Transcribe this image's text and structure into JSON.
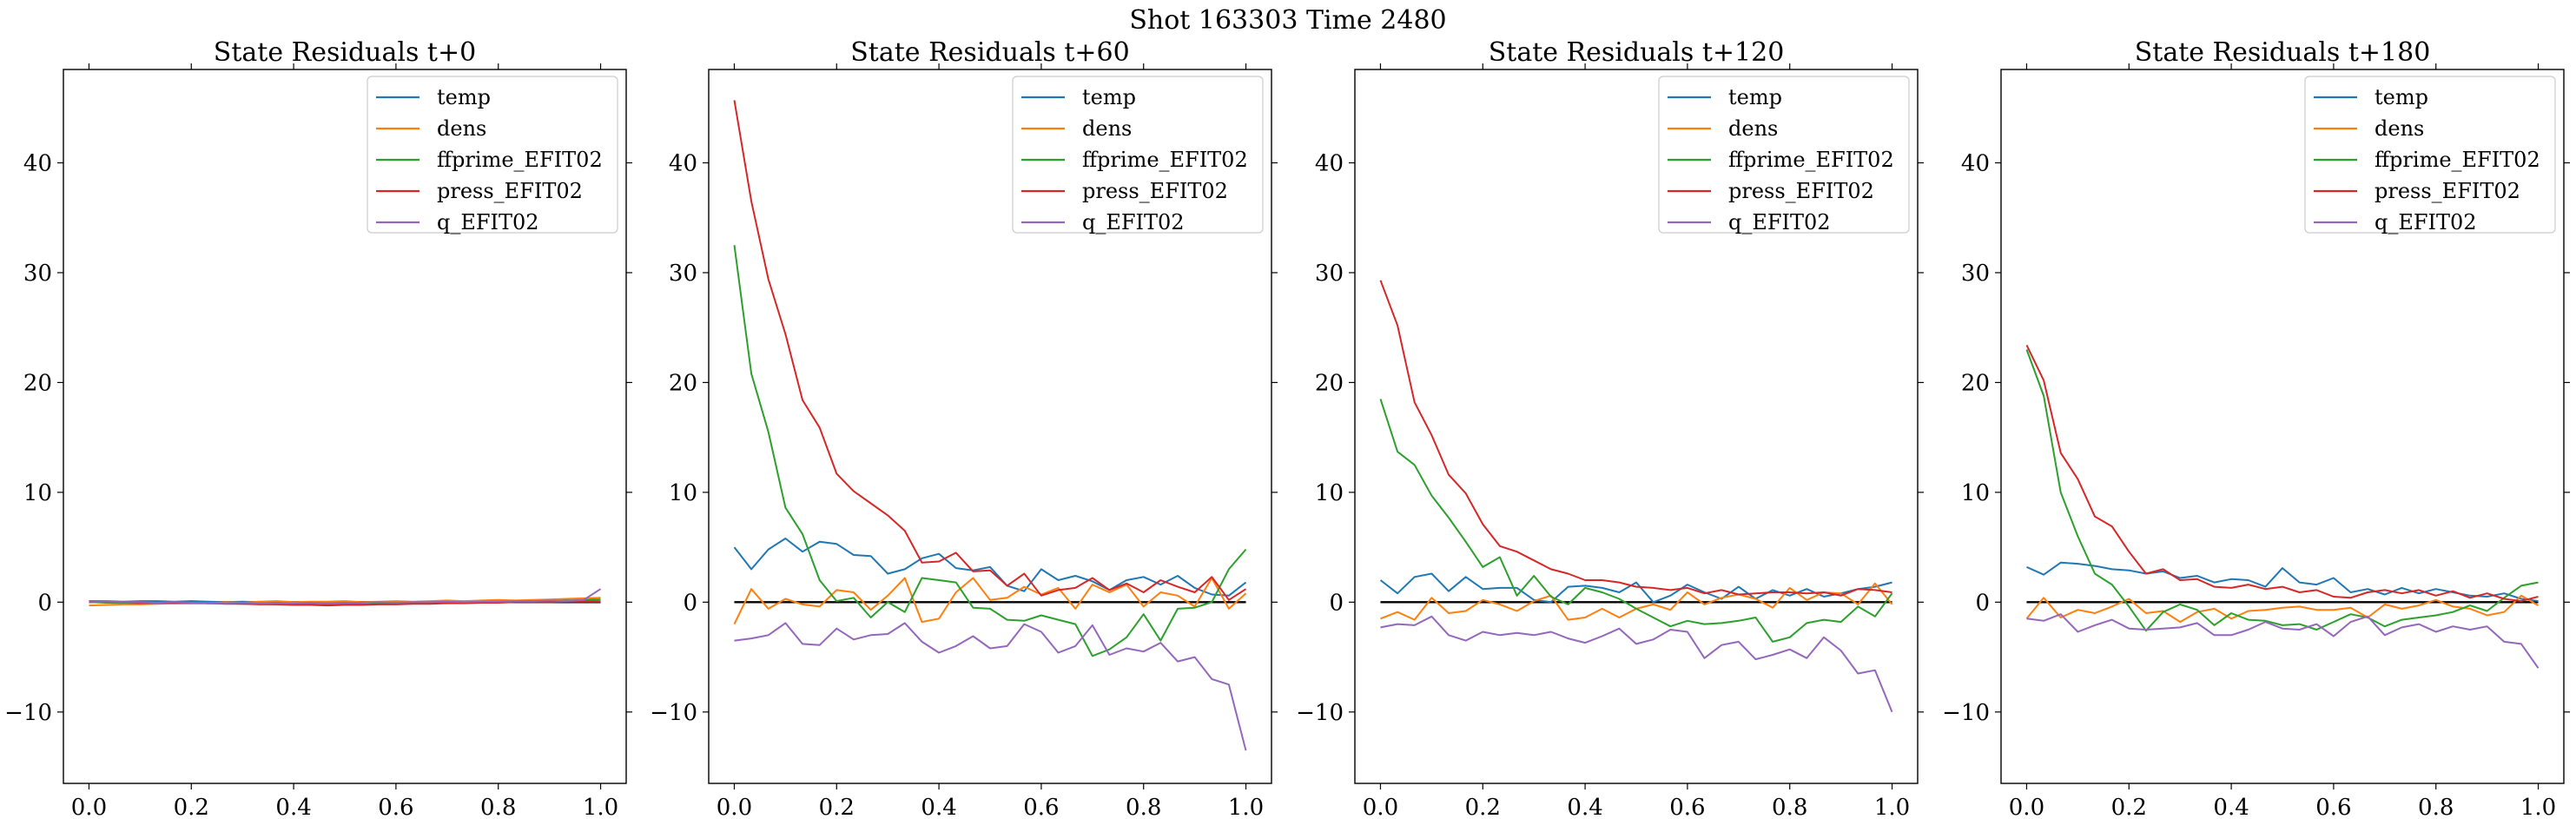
{
  "figure": {
    "suptitle": "Shot 163303   Time 2480"
  },
  "chart_data": [
    {
      "type": "line",
      "title": "State Residuals t+0",
      "xlabel": "",
      "ylabel": "",
      "xlim": [
        -0.05,
        1.05
      ],
      "ylim": [
        -16.5,
        48.5
      ],
      "xticks": [
        "0.0",
        "0.2",
        "0.4",
        "0.6",
        "0.8",
        "1.0"
      ],
      "yticks": [
        "−10",
        "0",
        "10",
        "20",
        "30",
        "40"
      ],
      "legend_position": "top-right",
      "reference_line": 0,
      "x": [
        0.0,
        0.0333,
        0.0667,
        0.1,
        0.1333,
        0.1667,
        0.2,
        0.2333,
        0.2667,
        0.3,
        0.3333,
        0.3667,
        0.4,
        0.4333,
        0.4667,
        0.5,
        0.5333,
        0.5667,
        0.6,
        0.6333,
        0.6667,
        0.7,
        0.7333,
        0.7667,
        0.8,
        0.8333,
        0.8667,
        0.9,
        0.9333,
        0.9667,
        1.0
      ],
      "series": [
        {
          "name": "temp",
          "color": "#1f77b4",
          "values": [
            0.1,
            0.1,
            0.05,
            0.1,
            0.1,
            0.05,
            0.1,
            0.05,
            0.0,
            0.05,
            0.0,
            -0.05,
            0.0,
            -0.05,
            -0.05,
            0.0,
            0.0,
            -0.05,
            0.0,
            0.0,
            0.05,
            0.0,
            0.05,
            0.05,
            0.1,
            0.05,
            0.1,
            0.1,
            0.15,
            0.2,
            0.25
          ]
        },
        {
          "name": "dens",
          "color": "#ff7f0e",
          "values": [
            -0.3,
            -0.25,
            -0.2,
            -0.2,
            -0.15,
            -0.1,
            -0.05,
            -0.1,
            0.0,
            -0.05,
            0.05,
            0.1,
            0.0,
            0.05,
            0.05,
            0.1,
            0.0,
            0.05,
            0.1,
            0.05,
            0.1,
            0.15,
            0.1,
            0.15,
            0.2,
            0.15,
            0.2,
            0.25,
            0.3,
            0.35,
            0.4
          ]
        },
        {
          "name": "ffprime_EFIT02",
          "color": "#2ca02c",
          "values": [
            0.0,
            -0.05,
            -0.05,
            -0.1,
            -0.1,
            -0.05,
            -0.05,
            -0.1,
            -0.1,
            -0.15,
            -0.15,
            -0.2,
            -0.2,
            -0.2,
            -0.25,
            -0.2,
            -0.2,
            -0.15,
            -0.15,
            -0.1,
            -0.1,
            -0.05,
            -0.05,
            0.0,
            0.0,
            0.05,
            0.05,
            0.1,
            0.1,
            0.15,
            0.2
          ]
        },
        {
          "name": "press_EFIT02",
          "color": "#d62728",
          "values": [
            0.05,
            0.0,
            0.0,
            -0.05,
            -0.05,
            -0.1,
            -0.1,
            -0.1,
            -0.15,
            -0.15,
            -0.2,
            -0.2,
            -0.25,
            -0.25,
            -0.3,
            -0.25,
            -0.25,
            -0.2,
            -0.2,
            -0.15,
            -0.15,
            -0.1,
            -0.1,
            -0.05,
            -0.05,
            0.0,
            0.0,
            0.0,
            0.05,
            0.05,
            0.05
          ]
        },
        {
          "name": "q_EFIT02",
          "color": "#9467bd",
          "values": [
            0.0,
            0.05,
            0.0,
            0.0,
            -0.05,
            0.0,
            -0.05,
            -0.05,
            -0.1,
            -0.05,
            -0.1,
            -0.1,
            -0.1,
            -0.05,
            -0.1,
            -0.05,
            -0.05,
            0.0,
            -0.05,
            0.0,
            0.0,
            0.05,
            0.0,
            0.05,
            0.05,
            0.1,
            0.1,
            0.15,
            0.1,
            0.2,
            1.2
          ]
        }
      ]
    },
    {
      "type": "line",
      "title": "State Residuals t+60",
      "xlabel": "",
      "ylabel": "",
      "xlim": [
        -0.05,
        1.05
      ],
      "ylim": [
        -16.5,
        48.5
      ],
      "xticks": [
        "0.0",
        "0.2",
        "0.4",
        "0.6",
        "0.8",
        "1.0"
      ],
      "yticks": [
        "−10",
        "0",
        "10",
        "20",
        "30",
        "40"
      ],
      "legend_position": "top-right",
      "reference_line": 0,
      "x": [
        0.0,
        0.0333,
        0.0667,
        0.1,
        0.1333,
        0.1667,
        0.2,
        0.2333,
        0.2667,
        0.3,
        0.3333,
        0.3667,
        0.4,
        0.4333,
        0.4667,
        0.5,
        0.5333,
        0.5667,
        0.6,
        0.6333,
        0.6667,
        0.7,
        0.7333,
        0.7667,
        0.8,
        0.8333,
        0.8667,
        0.9,
        0.9333,
        0.9667,
        1.0
      ],
      "series": [
        {
          "name": "temp",
          "color": "#1f77b4",
          "values": [
            5.0,
            3.0,
            4.8,
            5.8,
            4.6,
            5.5,
            5.3,
            4.3,
            4.2,
            2.6,
            3.0,
            4.0,
            4.4,
            3.1,
            2.9,
            3.2,
            1.5,
            1.0,
            3.0,
            2.0,
            2.4,
            1.9,
            1.1,
            2.0,
            2.3,
            1.6,
            2.4,
            1.3,
            0.7,
            0.6,
            1.8
          ]
        },
        {
          "name": "dens",
          "color": "#ff7f0e",
          "values": [
            -2.0,
            1.2,
            -0.6,
            0.3,
            -0.2,
            -0.4,
            1.1,
            0.9,
            -0.7,
            0.6,
            2.2,
            -1.8,
            -1.5,
            0.9,
            2.2,
            0.2,
            0.4,
            1.4,
            0.7,
            1.3,
            -0.6,
            1.6,
            0.9,
            1.6,
            -0.4,
            0.9,
            0.6,
            -0.4,
            2.2,
            -0.6,
            0.8
          ]
        },
        {
          "name": "ffprime_EFIT02",
          "color": "#2ca02c",
          "values": [
            32.5,
            20.8,
            15.5,
            8.6,
            6.2,
            2.0,
            0.1,
            0.4,
            -1.4,
            0.0,
            -0.9,
            2.2,
            2.0,
            1.8,
            -0.5,
            -0.6,
            -1.6,
            -1.7,
            -1.2,
            -1.6,
            -2.0,
            -4.9,
            -4.3,
            -3.2,
            -1.1,
            -3.5,
            -0.6,
            -0.5,
            0.0,
            3.0,
            4.8
          ]
        },
        {
          "name": "press_EFIT02",
          "color": "#d62728",
          "values": [
            45.7,
            36.5,
            29.4,
            24.4,
            18.4,
            15.9,
            11.7,
            10.1,
            9.0,
            7.9,
            6.5,
            3.6,
            3.7,
            4.5,
            2.8,
            2.9,
            1.5,
            2.6,
            0.6,
            1.1,
            1.3,
            2.2,
            1.1,
            1.7,
            0.9,
            2.0,
            1.4,
            0.9,
            2.3,
            0.2,
            1.2
          ]
        },
        {
          "name": "q_EFIT02",
          "color": "#9467bd",
          "values": [
            -3.5,
            -3.3,
            -3.0,
            -1.9,
            -3.8,
            -3.9,
            -2.4,
            -3.4,
            -3.0,
            -2.9,
            -1.9,
            -3.6,
            -4.6,
            -4.0,
            -3.1,
            -4.2,
            -4.0,
            -2.0,
            -2.7,
            -4.6,
            -4.0,
            -2.1,
            -4.8,
            -4.2,
            -4.5,
            -3.7,
            -5.4,
            -5.0,
            -7.0,
            -7.5,
            -13.5
          ]
        }
      ]
    },
    {
      "type": "line",
      "title": "State Residuals t+120",
      "xlabel": "",
      "ylabel": "",
      "xlim": [
        -0.05,
        1.05
      ],
      "ylim": [
        -16.5,
        48.5
      ],
      "xticks": [
        "0.0",
        "0.2",
        "0.4",
        "0.6",
        "0.8",
        "1.0"
      ],
      "yticks": [
        "−10",
        "0",
        "10",
        "20",
        "30",
        "40"
      ],
      "legend_position": "top-right",
      "reference_line": 0,
      "x": [
        0.0,
        0.0333,
        0.0667,
        0.1,
        0.1333,
        0.1667,
        0.2,
        0.2333,
        0.2667,
        0.3,
        0.3333,
        0.3667,
        0.4,
        0.4333,
        0.4667,
        0.5,
        0.5333,
        0.5667,
        0.6,
        0.6333,
        0.6667,
        0.7,
        0.7333,
        0.7667,
        0.8,
        0.8333,
        0.8667,
        0.9,
        0.9333,
        0.9667,
        1.0
      ],
      "series": [
        {
          "name": "temp",
          "color": "#1f77b4",
          "values": [
            2.0,
            0.8,
            2.3,
            2.6,
            1.0,
            2.3,
            1.2,
            1.3,
            1.3,
            0.2,
            0.0,
            1.4,
            1.5,
            1.3,
            0.9,
            1.8,
            0.0,
            0.6,
            1.6,
            0.9,
            0.3,
            1.4,
            0.3,
            1.1,
            0.6,
            1.2,
            0.5,
            0.8,
            1.2,
            1.4,
            1.8
          ]
        },
        {
          "name": "dens",
          "color": "#ff7f0e",
          "values": [
            -1.5,
            -0.9,
            -1.6,
            0.4,
            -1.0,
            -0.8,
            0.2,
            -0.2,
            -0.8,
            0.1,
            0.6,
            -1.6,
            -1.4,
            -0.6,
            -1.4,
            -0.6,
            -0.2,
            -0.7,
            0.9,
            -0.2,
            0.4,
            0.7,
            0.3,
            -0.5,
            1.3,
            0.2,
            0.9,
            0.8,
            -0.2,
            1.7,
            -0.2
          ]
        },
        {
          "name": "ffprime_EFIT02",
          "color": "#2ca02c",
          "values": [
            18.5,
            13.7,
            12.5,
            9.7,
            7.7,
            5.5,
            3.2,
            4.1,
            0.6,
            2.4,
            0.5,
            -0.2,
            1.3,
            0.9,
            0.3,
            -0.6,
            -1.4,
            -2.2,
            -1.7,
            -2.0,
            -1.9,
            -1.7,
            -1.4,
            -3.6,
            -3.2,
            -1.9,
            -1.6,
            -1.8,
            -0.4,
            -1.3,
            0.8
          ]
        },
        {
          "name": "press_EFIT02",
          "color": "#d62728",
          "values": [
            29.3,
            25.2,
            18.2,
            15.2,
            11.6,
            9.9,
            7.1,
            5.1,
            4.6,
            3.8,
            3.0,
            2.6,
            2.0,
            2.0,
            1.8,
            1.4,
            1.3,
            1.1,
            1.3,
            0.8,
            1.1,
            0.7,
            0.8,
            0.9,
            0.9,
            0.8,
            0.9,
            0.6,
            1.2,
            1.1,
            0.9
          ]
        },
        {
          "name": "q_EFIT02",
          "color": "#9467bd",
          "values": [
            -2.3,
            -2.0,
            -2.1,
            -1.3,
            -3.0,
            -3.5,
            -2.7,
            -3.0,
            -2.8,
            -3.0,
            -2.7,
            -3.3,
            -3.7,
            -3.1,
            -2.4,
            -3.8,
            -3.4,
            -2.5,
            -2.7,
            -5.1,
            -3.9,
            -3.6,
            -5.2,
            -4.8,
            -4.3,
            -5.1,
            -3.2,
            -4.4,
            -6.5,
            -6.2,
            -10.0
          ]
        }
      ]
    },
    {
      "type": "line",
      "title": "State Residuals t+180",
      "xlabel": "",
      "ylabel": "",
      "xlim": [
        -0.05,
        1.05
      ],
      "ylim": [
        -16.5,
        48.5
      ],
      "xticks": [
        "0.0",
        "0.2",
        "0.4",
        "0.6",
        "0.8",
        "1.0"
      ],
      "yticks": [
        "−10",
        "0",
        "10",
        "20",
        "30",
        "40"
      ],
      "legend_position": "top-right",
      "reference_line": 0,
      "x": [
        0.0,
        0.0333,
        0.0667,
        0.1,
        0.1333,
        0.1667,
        0.2,
        0.2333,
        0.2667,
        0.3,
        0.3333,
        0.3667,
        0.4,
        0.4333,
        0.4667,
        0.5,
        0.5333,
        0.5667,
        0.6,
        0.6333,
        0.6667,
        0.7,
        0.7333,
        0.7667,
        0.8,
        0.8333,
        0.8667,
        0.9,
        0.9333,
        0.9667,
        1.0
      ],
      "series": [
        {
          "name": "temp",
          "color": "#1f77b4",
          "values": [
            3.2,
            2.5,
            3.6,
            3.5,
            3.3,
            3.0,
            2.9,
            2.6,
            2.8,
            2.2,
            2.4,
            1.8,
            2.1,
            2.0,
            1.4,
            3.1,
            1.8,
            1.6,
            2.2,
            0.9,
            1.2,
            0.7,
            1.3,
            0.8,
            1.2,
            0.9,
            0.6,
            0.5,
            0.8,
            0.3,
            0.1
          ]
        },
        {
          "name": "dens",
          "color": "#ff7f0e",
          "values": [
            -1.5,
            0.4,
            -1.4,
            -0.7,
            -1.0,
            -0.4,
            0.3,
            -1.0,
            -0.8,
            -1.8,
            -0.9,
            -0.6,
            -1.5,
            -0.8,
            -0.7,
            -0.5,
            -0.4,
            -0.7,
            -0.7,
            -0.5,
            -1.4,
            -0.2,
            -0.6,
            -0.3,
            0.2,
            -0.4,
            -0.6,
            -1.2,
            -0.9,
            0.6,
            -0.3
          ]
        },
        {
          "name": "ffprime_EFIT02",
          "color": "#2ca02c",
          "values": [
            23.0,
            18.8,
            10.0,
            6.0,
            2.6,
            1.6,
            -0.4,
            -2.6,
            -0.9,
            -0.2,
            -0.7,
            -2.1,
            -1.0,
            -1.6,
            -1.7,
            -2.1,
            -2.0,
            -2.5,
            -1.8,
            -1.1,
            -1.4,
            -2.2,
            -1.6,
            -1.4,
            -1.2,
            -0.9,
            -0.3,
            -0.8,
            0.4,
            1.5,
            1.8
          ]
        },
        {
          "name": "press_EFIT02",
          "color": "#d62728",
          "values": [
            23.4,
            20.2,
            13.6,
            11.2,
            7.8,
            6.9,
            4.6,
            2.6,
            3.0,
            2.0,
            2.1,
            1.4,
            1.3,
            1.6,
            1.2,
            1.4,
            0.9,
            1.1,
            0.5,
            0.4,
            0.9,
            1.1,
            0.8,
            1.1,
            0.6,
            1.0,
            0.4,
            0.8,
            0.3,
            0.1,
            0.5
          ]
        },
        {
          "name": "q_EFIT02",
          "color": "#9467bd",
          "values": [
            -1.5,
            -1.7,
            -1.1,
            -2.7,
            -2.1,
            -1.6,
            -2.4,
            -2.5,
            -2.4,
            -2.3,
            -1.9,
            -3.0,
            -3.0,
            -2.5,
            -1.8,
            -2.4,
            -2.5,
            -2.0,
            -3.1,
            -1.8,
            -1.3,
            -3.0,
            -2.3,
            -2.0,
            -2.7,
            -2.2,
            -2.5,
            -2.2,
            -3.6,
            -3.8,
            -6.0
          ]
        }
      ]
    }
  ]
}
